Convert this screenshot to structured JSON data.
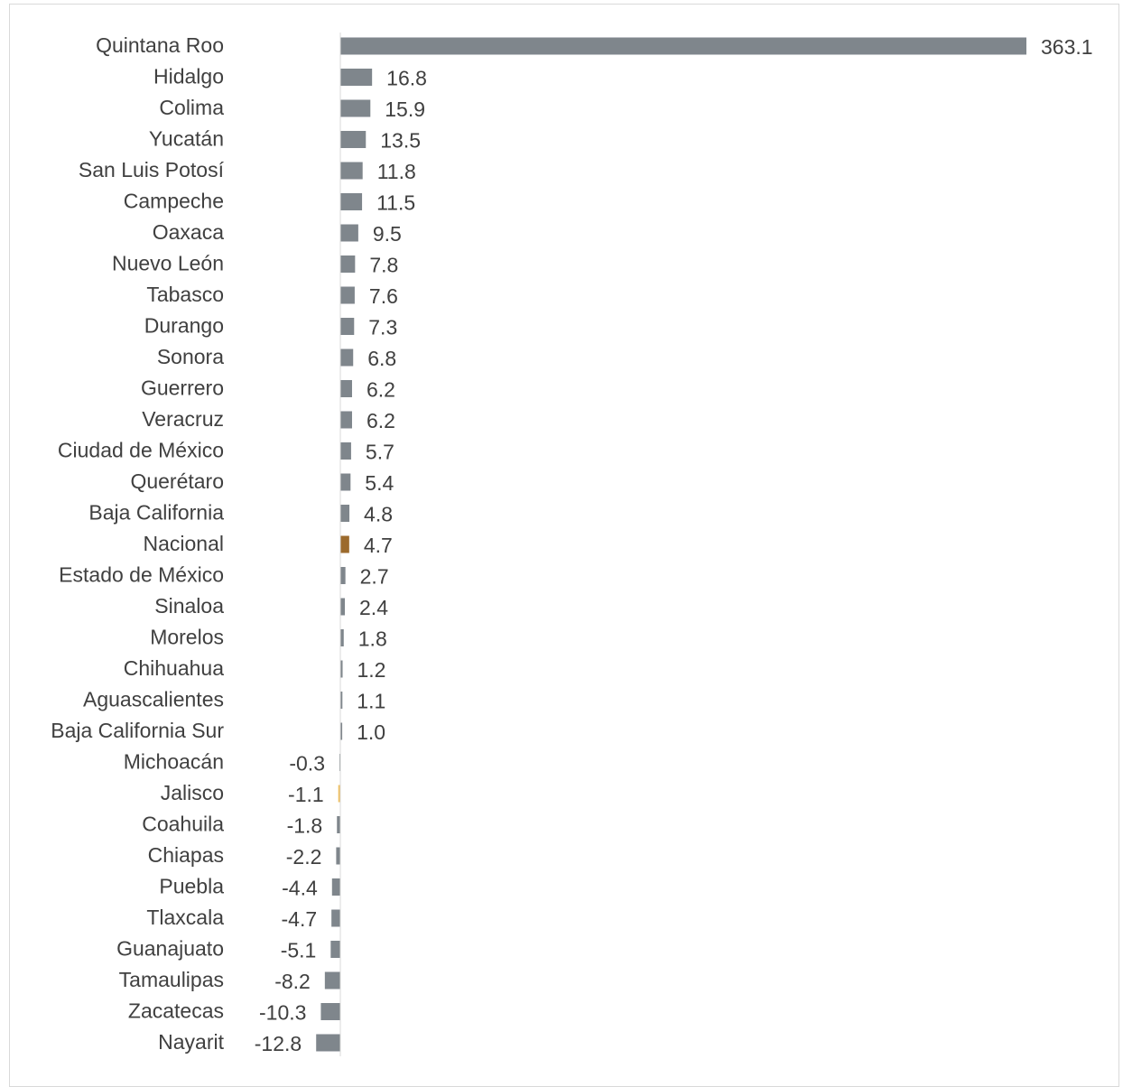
{
  "chart_data": {
    "type": "bar",
    "orientation": "horizontal",
    "title": "",
    "categories": [
      "Quintana Roo",
      "Hidalgo",
      "Colima",
      "Yucatán",
      "San Luis Potosí",
      "Campeche",
      "Oaxaca",
      "Nuevo León",
      "Tabasco",
      "Durango",
      "Sonora",
      "Guerrero",
      "Veracruz",
      "Ciudad de México",
      "Querétaro",
      "Baja California",
      "Nacional",
      "Estado de México",
      "Sinaloa",
      "Morelos",
      "Chihuahua",
      "Aguascalientes",
      "Baja California Sur",
      "Michoacán",
      "Jalisco",
      "Coahuila",
      "Chiapas",
      "Puebla",
      "Tlaxcala",
      "Guanajuato",
      "Tamaulipas",
      "Zacatecas",
      "Nayarit"
    ],
    "values": [
      363.1,
      16.8,
      15.9,
      13.5,
      11.8,
      11.5,
      9.5,
      7.8,
      7.6,
      7.3,
      6.8,
      6.2,
      6.2,
      5.7,
      5.4,
      4.8,
      4.7,
      2.7,
      2.4,
      1.8,
      1.2,
      1.1,
      1.0,
      -0.3,
      -1.1,
      -1.8,
      -2.2,
      -4.4,
      -4.7,
      -5.1,
      -8.2,
      -10.3,
      -12.8
    ],
    "value_labels": [
      "363.1",
      "16.8",
      "15.9",
      "13.5",
      "11.8",
      "11.5",
      "9.5",
      "7.8",
      "7.6",
      "7.3",
      "6.8",
      "6.2",
      "6.2",
      "5.7",
      "5.4",
      "4.8",
      "4.7",
      "2.7",
      "2.4",
      "1.8",
      "1.2",
      "1.1",
      "1.0",
      "-0.3",
      "-1.1",
      "-1.8",
      "-2.2",
      "-4.4",
      "-4.7",
      "-5.1",
      "-8.2",
      "-10.3",
      "-12.8"
    ],
    "colors": {
      "default": "#7f868c",
      "Nacional": "#9c6a2c",
      "Jalisco": "#f0c060"
    },
    "grid": false,
    "legend": "none"
  }
}
